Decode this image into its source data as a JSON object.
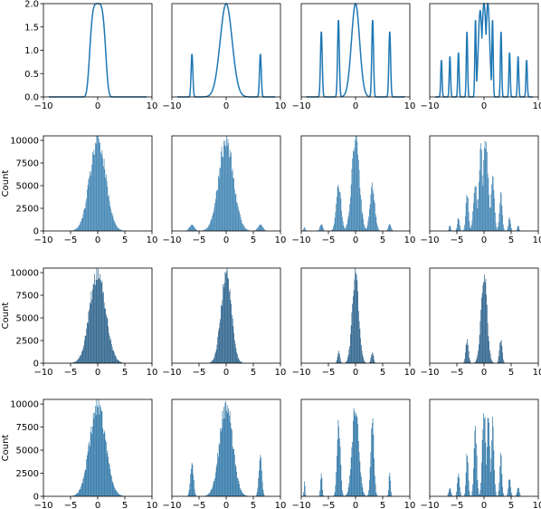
{
  "figure": {
    "background": "#ffffff",
    "line_color": "#1f77b4",
    "hist_colors": [
      "#4c8cb8",
      "#3a6d93",
      "#3e80ad"
    ]
  },
  "chart_data": [
    {
      "type": "line",
      "row": 0,
      "col": 0,
      "func": "gauss",
      "n_peaks": 1,
      "spacing": 0,
      "ylim": [
        0,
        2
      ],
      "xlim": [
        -10,
        10
      ],
      "yticks": [
        "0.0",
        "0.5",
        "1.0",
        "1.5",
        "2.0"
      ],
      "xticks": [
        "-10",
        "0",
        "10"
      ],
      "show_yticks": true
    },
    {
      "type": "line",
      "row": 0,
      "col": 1,
      "func": "comb",
      "n_peaks": 3,
      "spacing": 6.3,
      "ylim": [
        0,
        2
      ],
      "xlim": [
        -10,
        10
      ],
      "yticks": [],
      "xticks": [
        "-10",
        "0",
        "10"
      ],
      "show_yticks": false
    },
    {
      "type": "line",
      "row": 0,
      "col": 2,
      "func": "comb",
      "n_peaks": 7,
      "spacing": 3.15,
      "ylim": [
        0,
        2
      ],
      "xlim": [
        -10,
        10
      ],
      "yticks": [],
      "xticks": [
        "-10",
        "0",
        "10"
      ],
      "show_yticks": false
    },
    {
      "type": "line",
      "row": 0,
      "col": 3,
      "func": "comb",
      "n_peaks": 15,
      "spacing": 1.57,
      "ylim": [
        0,
        2
      ],
      "xlim": [
        -10,
        10
      ],
      "yticks": [],
      "xticks": [
        "-10",
        "0",
        "10"
      ],
      "show_yticks": false
    },
    {
      "type": "bar",
      "row": 1,
      "col": 0,
      "dist": "single",
      "ylabel": "Count",
      "ylim": [
        0,
        10500
      ],
      "xlim": [
        -10,
        10
      ],
      "yticks": [
        "0",
        "2500",
        "5000",
        "7500",
        "10000"
      ],
      "xticks": [
        "-10",
        "-5",
        "0",
        "5",
        "10"
      ],
      "show_yticks": true,
      "color_index": 0
    },
    {
      "type": "bar",
      "row": 1,
      "col": 1,
      "dist": "three",
      "ylim": [
        0,
        10500
      ],
      "xlim": [
        -10,
        10
      ],
      "yticks": [],
      "xticks": [
        "-10",
        "-5",
        "0",
        "5",
        "10"
      ],
      "show_yticks": false,
      "color_index": 0
    },
    {
      "type": "bar",
      "row": 1,
      "col": 2,
      "dist": "seven",
      "ylim": [
        0,
        10500
      ],
      "xlim": [
        -10,
        10
      ],
      "yticks": [],
      "xticks": [
        "-10",
        "-5",
        "0",
        "5",
        "10"
      ],
      "show_yticks": false,
      "color_index": 0
    },
    {
      "type": "bar",
      "row": 1,
      "col": 3,
      "dist": "fifteen",
      "ylim": [
        0,
        10500
      ],
      "xlim": [
        -10,
        10
      ],
      "yticks": [],
      "xticks": [
        "-10",
        "-5",
        "0",
        "5",
        "10"
      ],
      "show_yticks": false,
      "color_index": 0
    },
    {
      "type": "bar",
      "row": 2,
      "col": 0,
      "dist": "single",
      "ylabel": "Count",
      "ylim": [
        0,
        10500
      ],
      "xlim": [
        -10,
        10
      ],
      "yticks": [
        "0",
        "2500",
        "5000",
        "7500",
        "10000"
      ],
      "xticks": [
        "-10",
        "-5",
        "0",
        "5",
        "10"
      ],
      "show_yticks": true,
      "color_index": 1
    },
    {
      "type": "bar",
      "row": 2,
      "col": 1,
      "dist": "narrow",
      "ylim": [
        0,
        10500
      ],
      "xlim": [
        -10,
        10
      ],
      "yticks": [],
      "xticks": [
        "-10",
        "-5",
        "0",
        "5",
        "10"
      ],
      "show_yticks": false,
      "color_index": 1
    },
    {
      "type": "bar",
      "row": 2,
      "col": 2,
      "dist": "narrow3",
      "ylim": [
        0,
        10500
      ],
      "xlim": [
        -10,
        10
      ],
      "yticks": [],
      "xticks": [
        "-10",
        "-5",
        "0",
        "5",
        "10"
      ],
      "show_yticks": false,
      "color_index": 1
    },
    {
      "type": "bar",
      "row": 2,
      "col": 3,
      "dist": "narrow3b",
      "ylim": [
        0,
        10500
      ],
      "xlim": [
        -10,
        10
      ],
      "yticks": [],
      "xticks": [
        "-10",
        "-5",
        "0",
        "5",
        "10"
      ],
      "show_yticks": false,
      "color_index": 1
    },
    {
      "type": "bar",
      "row": 3,
      "col": 0,
      "dist": "single",
      "ylabel": "Count",
      "ylim": [
        0,
        10500
      ],
      "xlim": [
        -10,
        10
      ],
      "yticks": [
        "0",
        "2500",
        "5000",
        "7500",
        "10000"
      ],
      "xticks": [
        "-10",
        "-5",
        "0",
        "5",
        "10"
      ],
      "show_yticks": true,
      "color_index": 2
    },
    {
      "type": "bar",
      "row": 3,
      "col": 1,
      "dist": "threeB",
      "ylim": [
        0,
        10500
      ],
      "xlim": [
        -10,
        10
      ],
      "yticks": [],
      "xticks": [
        "-10",
        "-5",
        "0",
        "5",
        "10"
      ],
      "show_yticks": false,
      "color_index": 2
    },
    {
      "type": "bar",
      "row": 3,
      "col": 2,
      "dist": "sevenB",
      "ylim": [
        0,
        10500
      ],
      "xlim": [
        -10,
        10
      ],
      "yticks": [],
      "xticks": [
        "-10",
        "-5",
        "0",
        "5",
        "10"
      ],
      "show_yticks": false,
      "color_index": 2
    },
    {
      "type": "bar",
      "row": 3,
      "col": 3,
      "dist": "fifteenB",
      "ylim": [
        0,
        10500
      ],
      "xlim": [
        -10,
        10
      ],
      "yticks": [],
      "xticks": [
        "-10",
        "-5",
        "0",
        "5",
        "10"
      ],
      "show_yticks": false,
      "color_index": 2
    }
  ]
}
